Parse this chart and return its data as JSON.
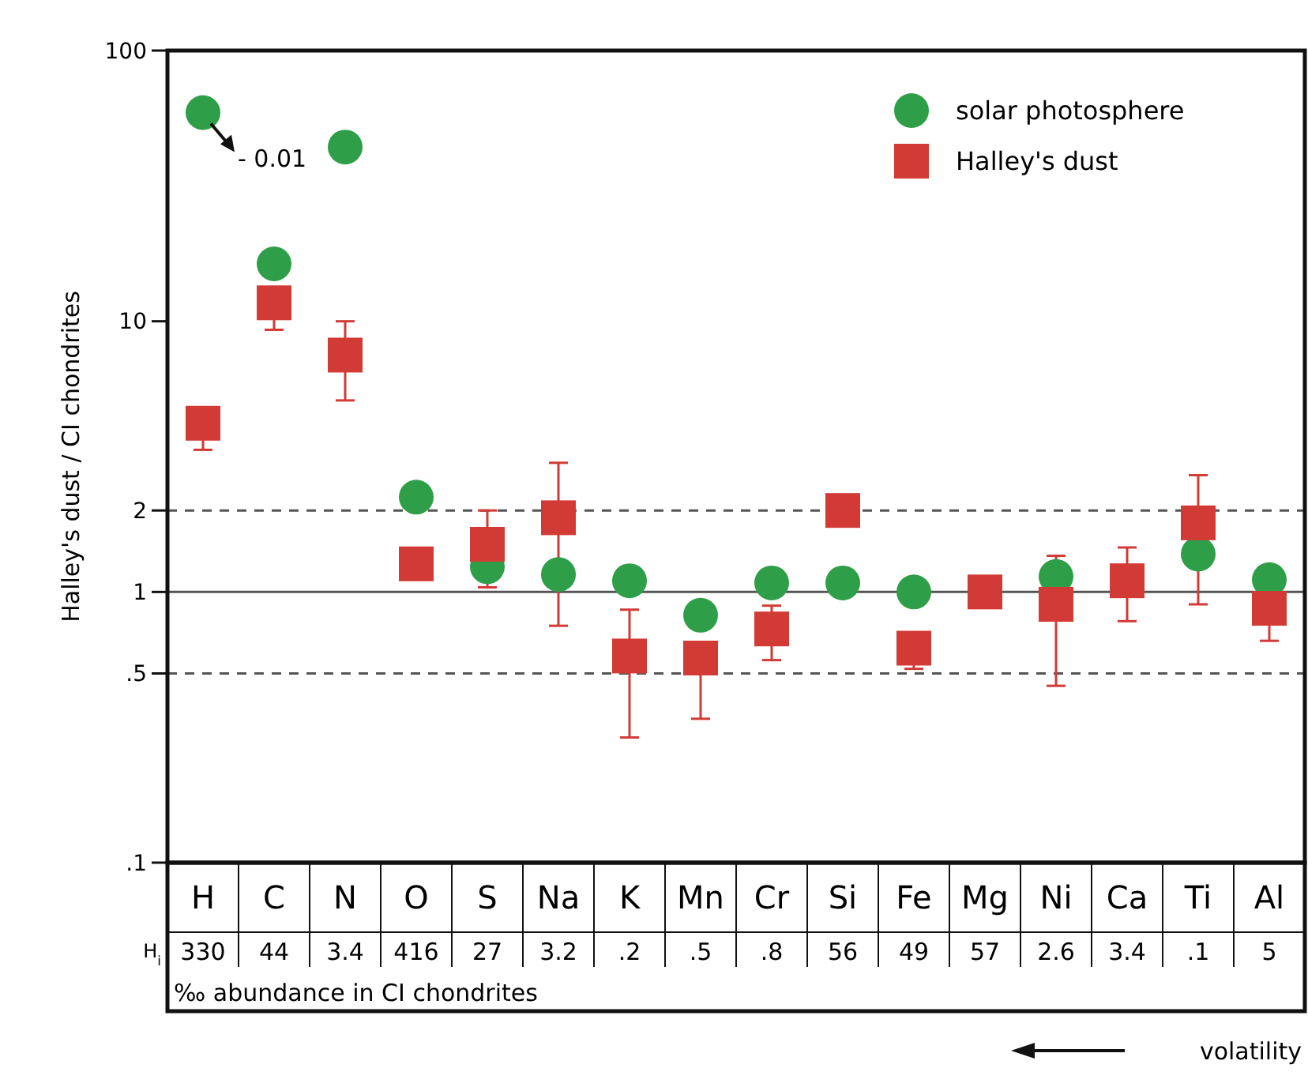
{
  "chart_data": {
    "type": "scatter",
    "ylabel": "Halley's dust / CI chondrites",
    "categories": [
      "H",
      "C",
      "N",
      "O",
      "S",
      "Na",
      "K",
      "Mn",
      "Cr",
      "Si",
      "Fe",
      "Mg",
      "Ni",
      "Ca",
      "Ti",
      "Al"
    ],
    "series": [
      {
        "name": "solar photosphere",
        "color": "#2e9e48",
        "marker": "circle",
        "values": [
          59,
          16.3,
          44,
          2.24,
          1.24,
          1.16,
          1.1,
          0.82,
          1.08,
          1.08,
          1.0,
          null,
          1.14,
          null,
          1.38,
          1.11
        ]
      },
      {
        "name": "Halley's dust",
        "color": "#d23a35",
        "marker": "square",
        "values": [
          4.2,
          11.7,
          7.5,
          1.27,
          1.5,
          1.88,
          0.58,
          0.57,
          0.73,
          2.0,
          0.62,
          1.0,
          0.9,
          1.1,
          1.8,
          0.87
        ],
        "errors": [
          [
            3.35,
            4.2
          ],
          [
            9.3,
            11.7
          ],
          [
            5.1,
            10
          ],
          null,
          [
            1.04,
            2.0
          ],
          [
            0.75,
            3.0
          ],
          [
            0.29,
            0.86
          ],
          [
            0.34,
            0.57
          ],
          [
            0.56,
            0.89
          ],
          null,
          [
            0.52,
            0.62
          ],
          null,
          [
            0.45,
            1.36
          ],
          [
            0.78,
            1.46
          ],
          [
            0.9,
            2.7
          ],
          [
            0.66,
            0.87
          ]
        ]
      }
    ],
    "log": "y",
    "ylim": [
      0.1,
      100
    ],
    "yticks": [
      {
        "value": 0.1,
        "label": ".1"
      },
      {
        "value": 0.5,
        "label": ".5"
      },
      1,
      2,
      10,
      100
    ],
    "ref_lines": [
      {
        "axis": "y",
        "value": 2,
        "line_style": "dashed"
      },
      {
        "axis": "y",
        "value": 1,
        "line_style": "solid"
      },
      {
        "axis": "y",
        "value": 0.5,
        "line_style": "dashed"
      }
    ],
    "grid": false,
    "legend": "top right",
    "annotations": [
      {
        "text": "- 0.01",
        "x": "H",
        "y": 59
      },
      "H$_{i}$",
      "330",
      "44",
      "3.4",
      "416",
      "27",
      "3.2",
      ".2",
      ".5",
      ".8",
      "56",
      "49",
      "57",
      "2.6",
      "3.4",
      ".1",
      "5",
      "‰ abundance in CI chondrites",
      "volatility"
    ]
  }
}
